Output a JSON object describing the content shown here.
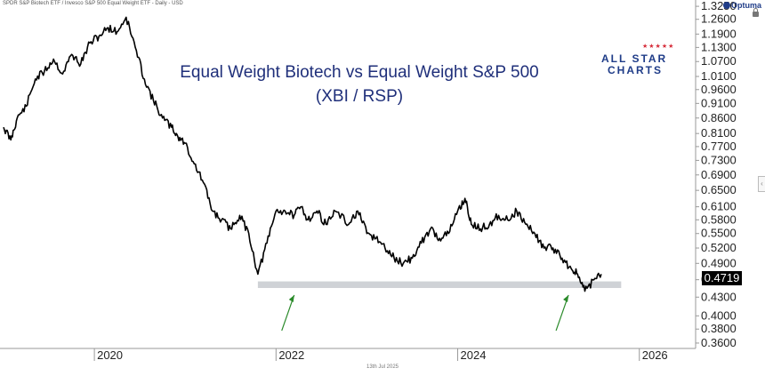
{
  "header": {
    "series_description": "SPDR S&P Biotech ETF / Invesco S&P 500 Equal Weight ETF - Daily - USD",
    "brand": "Optuma"
  },
  "title": {
    "line1": "Equal Weight Biotech vs Equal Weight S&P 500",
    "line2": "(XBI / RSP)"
  },
  "logo": {
    "line1": "ALL STAR",
    "line2": "CHARTS",
    "stars": "★★★★★"
  },
  "footer_date": "13th Jul 2025",
  "side_handle": "‹",
  "colors": {
    "price_line": "#000000",
    "support_band": "#cfd2d6",
    "arrows": "#2a8a2a",
    "title": "#1f2f7a",
    "logo_blue": "#1f3c88",
    "logo_red": "#d62d3a"
  },
  "chart_data": {
    "type": "line",
    "title": "Equal Weight Biotech vs Equal Weight S&P 500",
    "subtitle": "(XBI / RSP)",
    "x_axis": {
      "ticks": [
        "2020",
        "2022",
        "2024",
        "2026"
      ],
      "range": [
        2019.0,
        2026.6
      ]
    },
    "y_axis": {
      "scale": "log",
      "ticks": [
        "1.3250",
        "1.2600",
        "1.1900",
        "1.1300",
        "1.0700",
        "1.0100",
        "0.9600",
        "0.9100",
        "0.8600",
        "0.8100",
        "0.7700",
        "0.7300",
        "0.6900",
        "0.6500",
        "0.6100",
        "0.5800",
        "0.5500",
        "0.5200",
        "0.4900",
        "0.4600",
        "0.4300",
        "0.4000",
        "0.3800",
        "0.3600"
      ],
      "range": [
        0.355,
        1.33
      ]
    },
    "last_value": "0.4719",
    "series": [
      {
        "x": [
          2019.0,
          2019.08,
          2019.15,
          2019.25,
          2019.35,
          2019.45,
          2019.55,
          2019.65,
          2019.75,
          2019.85,
          2019.95,
          2020.05,
          2020.15,
          2020.25,
          2020.35,
          2020.45,
          2020.55,
          2020.65,
          2020.75,
          2020.85,
          2020.92,
          2021.0,
          2021.1,
          2021.2,
          2021.3,
          2021.4,
          2021.5,
          2021.6,
          2021.7,
          2021.8,
          2021.9,
          2022.0,
          2022.1,
          2022.2,
          2022.28,
          2022.35,
          2022.45,
          2022.55,
          2022.65,
          2022.8,
          2022.9,
          2023.0,
          2023.1,
          2023.2,
          2023.3,
          2023.4,
          2023.5,
          2023.6,
          2023.7,
          2023.8,
          2023.9,
          2024.0,
          2024.08,
          2024.15,
          2024.25,
          2024.35,
          2024.45,
          2024.55,
          2024.65,
          2024.75,
          2024.85,
          2024.95,
          2025.05,
          2025.15,
          2025.25,
          2025.32,
          2025.4,
          2025.5,
          2025.58
        ],
        "values": [
          0.83,
          0.79,
          0.86,
          0.9,
          1.0,
          1.03,
          1.08,
          1.02,
          1.1,
          1.06,
          1.15,
          1.18,
          1.22,
          1.2,
          1.27,
          1.13,
          1.0,
          0.92,
          0.86,
          0.83,
          0.8,
          0.78,
          0.72,
          0.67,
          0.6,
          0.58,
          0.56,
          0.59,
          0.55,
          0.47,
          0.53,
          0.6,
          0.6,
          0.59,
          0.61,
          0.58,
          0.6,
          0.57,
          0.6,
          0.57,
          0.6,
          0.55,
          0.54,
          0.52,
          0.5,
          0.49,
          0.5,
          0.53,
          0.56,
          0.54,
          0.55,
          0.6,
          0.63,
          0.57,
          0.56,
          0.57,
          0.59,
          0.58,
          0.6,
          0.57,
          0.55,
          0.52,
          0.52,
          0.5,
          0.48,
          0.47,
          0.44,
          0.46,
          0.47
        ]
      }
    ],
    "annotations": {
      "support_band": {
        "from": 0.4455,
        "to": 0.457,
        "x_from": 2021.8,
        "x_to": 2025.8
      },
      "arrows": [
        {
          "x": 2022.2,
          "pointing": "up"
        },
        {
          "x": 2025.22,
          "pointing": "up"
        }
      ]
    },
    "grid": false,
    "legend": "none"
  }
}
